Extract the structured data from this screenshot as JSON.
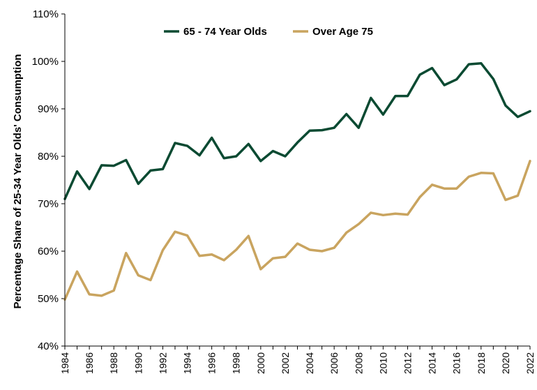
{
  "chart_data": {
    "type": "line",
    "title": "",
    "xlabel": "",
    "ylabel": "Percentage Share of 25-34 Year Olds' Consumption",
    "x": [
      1984,
      1985,
      1986,
      1987,
      1988,
      1989,
      1990,
      1991,
      1992,
      1993,
      1994,
      1995,
      1996,
      1997,
      1998,
      1999,
      2000,
      2001,
      2002,
      2003,
      2004,
      2005,
      2006,
      2007,
      2008,
      2009,
      2010,
      2011,
      2012,
      2013,
      2014,
      2015,
      2016,
      2017,
      2018,
      2019,
      2020,
      2021,
      2022
    ],
    "xticks": [
      "1984",
      "1986",
      "1988",
      "1990",
      "1992",
      "1994",
      "1996",
      "1998",
      "2000",
      "2002",
      "2004",
      "2006",
      "2008",
      "2010",
      "2012",
      "2014",
      "2016",
      "2018",
      "2020",
      "2022"
    ],
    "ylim": [
      40,
      110
    ],
    "yticks": [
      "40%",
      "50%",
      "60%",
      "70%",
      "80%",
      "90%",
      "100%",
      "110%"
    ],
    "grid": false,
    "legend_position": "top",
    "series": [
      {
        "name": "65 - 74 Year Olds",
        "color": "#0b4a32",
        "values": [
          71.0,
          76.8,
          73.1,
          78.1,
          78.0,
          79.2,
          74.2,
          77.0,
          77.3,
          82.8,
          82.2,
          80.2,
          83.9,
          79.6,
          80.0,
          82.6,
          79.0,
          81.1,
          80.0,
          82.9,
          85.4,
          85.5,
          86.0,
          88.9,
          86.0,
          92.3,
          88.8,
          92.7,
          92.7,
          97.2,
          98.6,
          95.0,
          96.2,
          99.4,
          99.6,
          96.3,
          90.7,
          88.3,
          89.5
        ]
      },
      {
        "name": "Over Age 75",
        "color": "#c9a45f",
        "values": [
          49.8,
          55.7,
          50.9,
          50.6,
          51.7,
          59.6,
          54.9,
          53.9,
          60.2,
          64.1,
          63.3,
          59.0,
          59.3,
          58.1,
          60.3,
          63.2,
          56.2,
          58.5,
          58.8,
          61.6,
          60.3,
          60.0,
          60.7,
          63.9,
          65.7,
          68.1,
          67.6,
          67.9,
          67.7,
          71.4,
          74.0,
          73.2,
          73.2,
          75.7,
          76.5,
          76.4,
          70.8,
          71.7,
          79.0
        ]
      }
    ]
  }
}
